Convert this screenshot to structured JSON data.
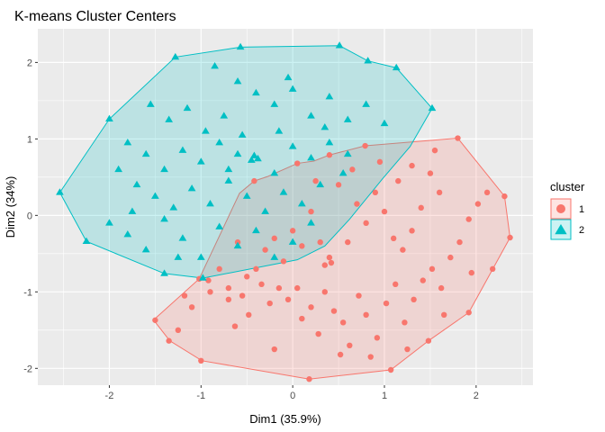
{
  "chart_data": {
    "type": "scatter",
    "title": "K-means Cluster Centers",
    "xlabel": "Dim1 (35.9%)",
    "ylabel": "Dim2 (34%)",
    "xlim": [
      -2.78,
      2.62
    ],
    "ylim": [
      -2.22,
      2.44
    ],
    "x_ticks": [
      -2,
      -1,
      0,
      1,
      2
    ],
    "y_ticks": [
      -2,
      -1,
      0,
      1,
      2
    ],
    "grid": true,
    "legend": {
      "title": "cluster",
      "position": "right"
    },
    "series": [
      {
        "name": "1",
        "color": "#F8766D",
        "marker": "circle",
        "hull": [
          [
            -1.51,
            -1.38
          ],
          [
            -1.34,
            -1.64
          ],
          [
            -0.99,
            -1.9
          ],
          [
            0.18,
            -2.14
          ],
          [
            1.07,
            -2.02
          ],
          [
            1.48,
            -1.64
          ],
          [
            1.92,
            -1.27
          ],
          [
            2.37,
            -0.29
          ],
          [
            2.31,
            0.25
          ],
          [
            1.8,
            1.01
          ],
          [
            0.79,
            0.91
          ],
          [
            0.4,
            0.79
          ],
          [
            0.23,
            0.71
          ],
          [
            0.05,
            0.68
          ],
          [
            -0.27,
            0.51
          ],
          [
            -0.42,
            0.45
          ],
          [
            -0.58,
            0.29
          ],
          [
            -1.02,
            -0.83
          ],
          [
            -1.52,
            -1.37
          ]
        ],
        "points": [
          [
            -1.5,
            -1.37
          ],
          [
            -1.35,
            -1.64
          ],
          [
            -1.0,
            -1.9
          ],
          [
            0.18,
            -2.14
          ],
          [
            1.07,
            -2.02
          ],
          [
            1.48,
            -1.64
          ],
          [
            1.92,
            -1.27
          ],
          [
            2.37,
            -0.29
          ],
          [
            2.31,
            0.25
          ],
          [
            1.8,
            1.01
          ],
          [
            0.79,
            0.91
          ],
          [
            0.4,
            0.79
          ],
          [
            0.05,
            0.68
          ],
          [
            -0.42,
            0.45
          ],
          [
            -1.02,
            -0.83
          ],
          [
            -1.18,
            -1.05
          ],
          [
            -0.92,
            -0.85
          ],
          [
            -0.7,
            -1.1
          ],
          [
            -0.55,
            -1.05
          ],
          [
            -0.48,
            -1.3
          ],
          [
            -0.34,
            -0.9
          ],
          [
            -0.25,
            -1.15
          ],
          [
            -0.15,
            -0.95
          ],
          [
            -0.05,
            -1.1
          ],
          [
            0.05,
            -0.95
          ],
          [
            0.1,
            -1.35
          ],
          [
            0.2,
            -1.2
          ],
          [
            0.28,
            -1.55
          ],
          [
            0.35,
            -1.0
          ],
          [
            0.45,
            -1.25
          ],
          [
            0.55,
            -1.4
          ],
          [
            0.62,
            -1.7
          ],
          [
            0.72,
            -1.05
          ],
          [
            0.8,
            -1.3
          ],
          [
            0.92,
            -1.6
          ],
          [
            1.02,
            -1.15
          ],
          [
            1.12,
            -0.9
          ],
          [
            1.22,
            -1.4
          ],
          [
            1.32,
            -1.1
          ],
          [
            1.42,
            -0.85
          ],
          [
            1.52,
            -0.7
          ],
          [
            1.62,
            -0.95
          ],
          [
            1.72,
            -0.55
          ],
          [
            1.82,
            -0.35
          ],
          [
            1.92,
            -0.05
          ],
          [
            2.02,
            0.15
          ],
          [
            2.12,
            0.3
          ],
          [
            1.6,
            0.3
          ],
          [
            1.5,
            0.55
          ],
          [
            1.4,
            0.1
          ],
          [
            1.3,
            -0.2
          ],
          [
            1.2,
            -0.45
          ],
          [
            1.1,
            -0.3
          ],
          [
            1.0,
            0.05
          ],
          [
            0.9,
            0.3
          ],
          [
            0.8,
            -0.1
          ],
          [
            0.7,
            0.15
          ],
          [
            0.6,
            -0.35
          ],
          [
            0.5,
            0.4
          ],
          [
            0.4,
            -0.55
          ],
          [
            0.35,
            -0.65
          ],
          [
            0.42,
            -0.62
          ],
          [
            0.3,
            -0.35
          ],
          [
            0.2,
            0.05
          ],
          [
            0.1,
            -0.4
          ],
          [
            0.0,
            -0.2
          ],
          [
            -0.1,
            -0.6
          ],
          [
            -0.2,
            -0.3
          ],
          [
            -0.3,
            -0.45
          ],
          [
            -0.4,
            -0.7
          ],
          [
            -0.5,
            -0.8
          ],
          [
            -0.6,
            -0.35
          ],
          [
            -0.7,
            -0.95
          ],
          [
            -0.8,
            -0.7
          ],
          [
            -0.9,
            -1.0
          ],
          [
            -1.1,
            -1.2
          ],
          [
            -1.25,
            -1.5
          ],
          [
            -0.63,
            -1.45
          ],
          [
            -0.2,
            -1.75
          ],
          [
            0.52,
            -1.82
          ],
          [
            0.85,
            -1.85
          ],
          [
            1.25,
            -1.75
          ],
          [
            1.65,
            -1.3
          ],
          [
            1.95,
            -0.75
          ],
          [
            2.18,
            -0.7
          ],
          [
            1.55,
            0.85
          ],
          [
            1.3,
            0.65
          ],
          [
            1.15,
            0.45
          ],
          [
            0.95,
            0.7
          ],
          [
            0.65,
            0.6
          ],
          [
            0.25,
            0.45
          ]
        ]
      },
      {
        "name": "2",
        "color": "#00BFC4",
        "marker": "triangle",
        "hull": [
          [
            -2.54,
            0.3
          ],
          [
            -2.25,
            -0.34
          ],
          [
            -1.4,
            -0.76
          ],
          [
            -0.98,
            -0.82
          ],
          [
            0.05,
            -0.58
          ],
          [
            0.35,
            -0.4
          ],
          [
            0.62,
            -0.05
          ],
          [
            0.98,
            0.48
          ],
          [
            1.28,
            0.9
          ],
          [
            1.52,
            1.4
          ],
          [
            1.13,
            1.93
          ],
          [
            0.82,
            2.02
          ],
          [
            0.51,
            2.22
          ],
          [
            -0.57,
            2.2
          ],
          [
            -1.28,
            2.07
          ],
          [
            -2.0,
            1.26
          ],
          [
            -2.54,
            0.3
          ]
        ],
        "points": [
          [
            -2.54,
            0.3
          ],
          [
            -2.25,
            -0.34
          ],
          [
            -1.4,
            -0.76
          ],
          [
            -0.98,
            -0.82
          ],
          [
            0.51,
            2.22
          ],
          [
            1.13,
            1.93
          ],
          [
            0.82,
            2.02
          ],
          [
            -0.57,
            2.2
          ],
          [
            -1.28,
            2.07
          ],
          [
            -2.0,
            1.26
          ],
          [
            1.52,
            1.4
          ],
          [
            -0.85,
            1.95
          ],
          [
            -0.6,
            1.75
          ],
          [
            -0.4,
            1.6
          ],
          [
            -0.2,
            1.45
          ],
          [
            0.0,
            1.65
          ],
          [
            0.2,
            1.3
          ],
          [
            0.4,
            1.55
          ],
          [
            0.6,
            1.25
          ],
          [
            0.8,
            1.45
          ],
          [
            1.0,
            1.2
          ],
          [
            -1.8,
            0.95
          ],
          [
            -1.6,
            0.8
          ],
          [
            -1.4,
            0.6
          ],
          [
            -1.2,
            0.85
          ],
          [
            -1.0,
            0.7
          ],
          [
            -0.8,
            0.95
          ],
          [
            -0.6,
            0.8
          ],
          [
            -0.45,
            0.72
          ],
          [
            -0.42,
            0.78
          ],
          [
            -0.38,
            0.74
          ],
          [
            -0.2,
            0.55
          ],
          [
            0.0,
            0.9
          ],
          [
            0.2,
            0.75
          ],
          [
            0.4,
            0.95
          ],
          [
            0.6,
            0.8
          ],
          [
            -1.9,
            0.6
          ],
          [
            -1.7,
            0.4
          ],
          [
            -1.5,
            0.25
          ],
          [
            -1.3,
            0.1
          ],
          [
            -1.1,
            0.35
          ],
          [
            -0.9,
            0.15
          ],
          [
            -0.7,
            0.45
          ],
          [
            -0.5,
            0.25
          ],
          [
            -0.3,
            0.05
          ],
          [
            -0.1,
            0.3
          ],
          [
            0.1,
            0.15
          ],
          [
            0.3,
            0.4
          ],
          [
            -2.0,
            -0.1
          ],
          [
            -1.8,
            -0.25
          ],
          [
            -1.6,
            -0.45
          ],
          [
            -1.4,
            -0.05
          ],
          [
            -1.2,
            -0.3
          ],
          [
            -1.0,
            -0.55
          ],
          [
            -0.8,
            -0.15
          ],
          [
            -0.6,
            -0.4
          ],
          [
            -0.4,
            -0.2
          ],
          [
            -0.2,
            -0.55
          ],
          [
            0.0,
            -0.35
          ],
          [
            0.2,
            -0.1
          ],
          [
            -1.55,
            1.45
          ],
          [
            -1.35,
            1.25
          ],
          [
            -1.15,
            1.4
          ],
          [
            -0.95,
            1.1
          ],
          [
            -0.75,
            1.3
          ],
          [
            -0.15,
            1.1
          ],
          [
            0.35,
            1.15
          ],
          [
            0.55,
            0.55
          ],
          [
            -0.55,
            1.05
          ],
          [
            -1.75,
            0.05
          ],
          [
            -1.25,
            -0.55
          ],
          [
            -0.05,
            1.8
          ],
          [
            -0.7,
            0.6
          ]
        ]
      }
    ]
  }
}
